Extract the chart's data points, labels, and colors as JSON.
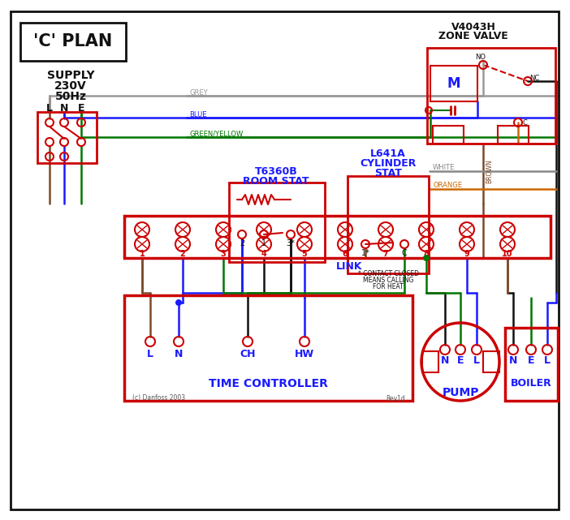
{
  "bg": "#ffffff",
  "red": "#cc0000",
  "blue": "#1a1aff",
  "green": "#007700",
  "brown": "#7a4a2a",
  "grey": "#999999",
  "orange": "#cc6600",
  "black": "#111111",
  "title": "'C' PLAN",
  "supply_lines": [
    "SUPPLY",
    "230V",
    "50Hz"
  ],
  "supply_lne": [
    "L",
    "N",
    "E"
  ],
  "room_t1": "T6360B",
  "room_t2": "ROOM STAT",
  "cyl_t1": "L641A",
  "cyl_t2": "CYLINDER",
  "cyl_t3": "STAT",
  "zone_t1": "V4043H",
  "zone_t2": "ZONE VALVE",
  "term_nums": [
    "1",
    "2",
    "3",
    "4",
    "5",
    "6",
    "7",
    "8",
    "9",
    "10"
  ],
  "tc_title": "TIME CONTROLLER",
  "tc_lne": [
    "L",
    "N",
    "CH",
    "HW"
  ],
  "pump_label": "PUMP",
  "boiler_label": "BOILER",
  "nel": [
    "N",
    "E",
    "L"
  ],
  "link_label": "LINK",
  "grey_lbl": "GREY",
  "blue_lbl": "BLUE",
  "gy_lbl": "GREEN/YELLOW",
  "brown_lbl": "BROWN",
  "white_lbl": "WHITE",
  "orange_lbl": "ORANGE",
  "no_lbl": "NO",
  "nc_lbl": "NC",
  "c_lbl": "C",
  "note1": "* CONTACT CLOSED",
  "note2": "MEANS CALLING",
  "note3": "FOR HEAT",
  "footnote": "(c) Danfoss 2003",
  "rev": "Rev1d"
}
